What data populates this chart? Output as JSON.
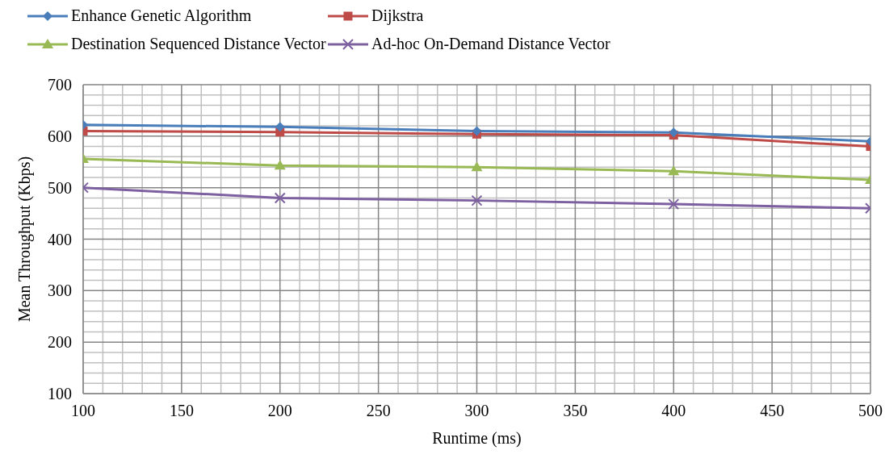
{
  "chart_data": {
    "type": "line",
    "xlabel": "Runtime (ms)",
    "ylabel": "Mean Throughput (Kbps)",
    "x": [
      100,
      200,
      300,
      400,
      500
    ],
    "series": [
      {
        "name": "Enhance Genetic Algorithm",
        "color": "#4a7ebb",
        "marker": "diamond",
        "values": [
          622,
          618,
          610,
          607,
          590
        ]
      },
      {
        "name": "Dijkstra",
        "color": "#be4b48",
        "marker": "square",
        "values": [
          610,
          608,
          604,
          602,
          580
        ]
      },
      {
        "name": "Destination Sequenced Distance Vector",
        "color": "#98b954",
        "marker": "triangle",
        "values": [
          556,
          543,
          540,
          532,
          515
        ]
      },
      {
        "name": "Ad-hoc On-Demand Distance Vector",
        "color": "#7d60a0",
        "marker": "cross",
        "values": [
          500,
          480,
          475,
          468,
          460
        ]
      }
    ],
    "xlim": [
      100,
      500
    ],
    "xticks": [
      100,
      150,
      200,
      250,
      300,
      350,
      400,
      450,
      500
    ],
    "ylim": [
      100,
      700
    ],
    "yticks": [
      100,
      200,
      300,
      400,
      500,
      600,
      700
    ],
    "grid": true,
    "legend": "top",
    "line_style": "solid"
  }
}
